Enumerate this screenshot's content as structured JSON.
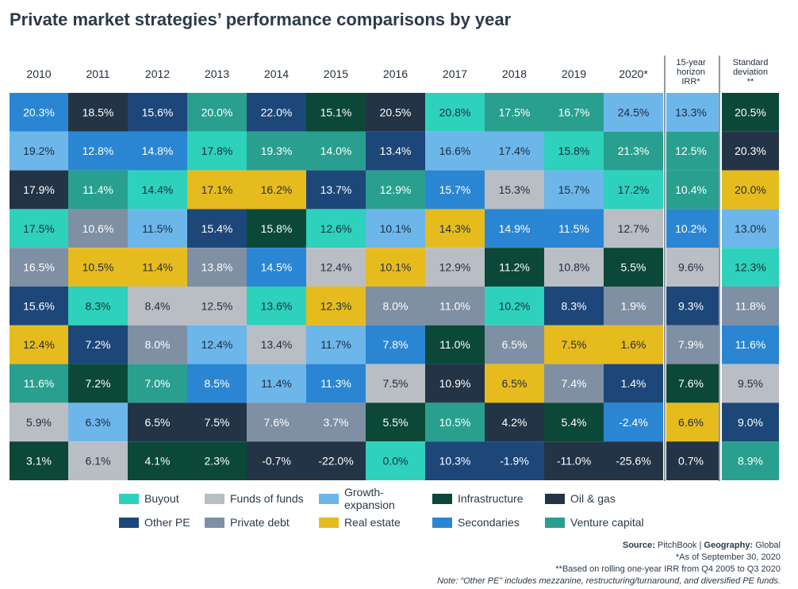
{
  "title": "Private market strategies’ performance comparisons by year",
  "colors": {
    "Buyout": "#2ed1bb",
    "Funds of funds": "#b9bec5",
    "Growth-expansion": "#6cb6ea",
    "Infrastructure": "#0c4838",
    "Oil & gas": "#243447",
    "Other PE": "#1d4779",
    "Private debt": "#7f8fa4",
    "Real estate": "#e6bb1d",
    "Secondaries": "#2a86d3",
    "Venture capital": "#299f8f"
  },
  "chart_data": {
    "type": "table",
    "title": "Private market strategies’ performance comparisons by year",
    "columns": [
      {
        "label": "2010",
        "cells": [
          [
            "20.3%",
            "Secondaries"
          ],
          [
            "19.2%",
            "Growth-expansion"
          ],
          [
            "17.9%",
            "Oil & gas"
          ],
          [
            "17.5%",
            "Buyout"
          ],
          [
            "16.5%",
            "Private debt"
          ],
          [
            "15.6%",
            "Other PE"
          ],
          [
            "12.4%",
            "Real estate"
          ],
          [
            "11.6%",
            "Venture capital"
          ],
          [
            "5.9%",
            "Funds of funds"
          ],
          [
            "3.1%",
            "Infrastructure"
          ]
        ]
      },
      {
        "label": "2011",
        "cells": [
          [
            "18.5%",
            "Oil & gas"
          ],
          [
            "12.8%",
            "Secondaries"
          ],
          [
            "11.4%",
            "Venture capital"
          ],
          [
            "10.6%",
            "Private debt"
          ],
          [
            "10.5%",
            "Real estate"
          ],
          [
            "8.3%",
            "Buyout"
          ],
          [
            "7.2%",
            "Other PE"
          ],
          [
            "7.2%",
            "Infrastructure"
          ],
          [
            "6.3%",
            "Growth-expansion"
          ],
          [
            "6.1%",
            "Funds of funds"
          ]
        ]
      },
      {
        "label": "2012",
        "cells": [
          [
            "15.6%",
            "Other PE"
          ],
          [
            "14.8%",
            "Secondaries"
          ],
          [
            "14.4%",
            "Buyout"
          ],
          [
            "11.5%",
            "Growth-expansion"
          ],
          [
            "11.4%",
            "Real estate"
          ],
          [
            "8.4%",
            "Funds of funds"
          ],
          [
            "8.0%",
            "Private debt"
          ],
          [
            "7.0%",
            "Venture capital"
          ],
          [
            "6.5%",
            "Oil & gas"
          ],
          [
            "4.1%",
            "Infrastructure"
          ]
        ]
      },
      {
        "label": "2013",
        "cells": [
          [
            "20.0%",
            "Venture capital"
          ],
          [
            "17.8%",
            "Buyout"
          ],
          [
            "17.1%",
            "Real estate"
          ],
          [
            "15.4%",
            "Other PE"
          ],
          [
            "13.8%",
            "Private debt"
          ],
          [
            "12.5%",
            "Funds of funds"
          ],
          [
            "12.4%",
            "Growth-expansion"
          ],
          [
            "8.5%",
            "Secondaries"
          ],
          [
            "7.5%",
            "Oil & gas"
          ],
          [
            "2.3%",
            "Infrastructure"
          ]
        ]
      },
      {
        "label": "2014",
        "cells": [
          [
            "22.0%",
            "Other PE"
          ],
          [
            "19.3%",
            "Venture capital"
          ],
          [
            "16.2%",
            "Real estate"
          ],
          [
            "15.8%",
            "Infrastructure"
          ],
          [
            "14.5%",
            "Secondaries"
          ],
          [
            "13.6%",
            "Buyout"
          ],
          [
            "13.4%",
            "Funds of funds"
          ],
          [
            "11.4%",
            "Growth-expansion"
          ],
          [
            "7.6%",
            "Private debt"
          ],
          [
            "-0.7%",
            "Oil & gas"
          ]
        ]
      },
      {
        "label": "2015",
        "cells": [
          [
            "15.1%",
            "Infrastructure"
          ],
          [
            "14.0%",
            "Venture capital"
          ],
          [
            "13.7%",
            "Other PE"
          ],
          [
            "12.6%",
            "Buyout"
          ],
          [
            "12.4%",
            "Funds of funds"
          ],
          [
            "12.3%",
            "Real estate"
          ],
          [
            "11.7%",
            "Growth-expansion"
          ],
          [
            "11.3%",
            "Secondaries"
          ],
          [
            "3.7%",
            "Private debt"
          ],
          [
            "-22.0%",
            "Oil & gas"
          ]
        ]
      },
      {
        "label": "2016",
        "cells": [
          [
            "20.5%",
            "Oil & gas"
          ],
          [
            "13.4%",
            "Other PE"
          ],
          [
            "12.9%",
            "Venture capital"
          ],
          [
            "10.1%",
            "Growth-expansion"
          ],
          [
            "10.1%",
            "Real estate"
          ],
          [
            "8.0%",
            "Private debt"
          ],
          [
            "7.8%",
            "Secondaries"
          ],
          [
            "7.5%",
            "Funds of funds"
          ],
          [
            "5.5%",
            "Infrastructure"
          ],
          [
            "0.0%",
            "Buyout"
          ]
        ]
      },
      {
        "label": "2017",
        "cells": [
          [
            "20.8%",
            "Buyout"
          ],
          [
            "16.6%",
            "Growth-expansion"
          ],
          [
            "15.7%",
            "Secondaries"
          ],
          [
            "14.3%",
            "Real estate"
          ],
          [
            "12.9%",
            "Funds of funds"
          ],
          [
            "11.0%",
            "Private debt"
          ],
          [
            "11.0%",
            "Infrastructure"
          ],
          [
            "10.9%",
            "Oil & gas"
          ],
          [
            "10.5%",
            "Venture capital"
          ],
          [
            "10.3%",
            "Other PE"
          ]
        ]
      },
      {
        "label": "2018",
        "cells": [
          [
            "17.5%",
            "Venture capital"
          ],
          [
            "17.4%",
            "Growth-expansion"
          ],
          [
            "15.3%",
            "Funds of funds"
          ],
          [
            "14.9%",
            "Secondaries"
          ],
          [
            "11.2%",
            "Infrastructure"
          ],
          [
            "10.2%",
            "Buyout"
          ],
          [
            "6.5%",
            "Private debt"
          ],
          [
            "6.5%",
            "Real estate"
          ],
          [
            "4.2%",
            "Oil & gas"
          ],
          [
            "-1.9%",
            "Other PE"
          ]
        ]
      },
      {
        "label": "2019",
        "cells": [
          [
            "16.7%",
            "Venture capital"
          ],
          [
            "15.8%",
            "Buyout"
          ],
          [
            "15.7%",
            "Growth-expansion"
          ],
          [
            "11.5%",
            "Secondaries"
          ],
          [
            "10.8%",
            "Funds of funds"
          ],
          [
            "8.3%",
            "Other PE"
          ],
          [
            "7.5%",
            "Real estate"
          ],
          [
            "7.4%",
            "Private debt"
          ],
          [
            "5.4%",
            "Infrastructure"
          ],
          [
            "-11.0%",
            "Oil & gas"
          ]
        ]
      },
      {
        "label": "2020*",
        "cells": [
          [
            "24.5%",
            "Growth-expansion"
          ],
          [
            "21.3%",
            "Venture capital"
          ],
          [
            "17.2%",
            "Buyout"
          ],
          [
            "12.7%",
            "Funds of funds"
          ],
          [
            "5.5%",
            "Infrastructure"
          ],
          [
            "1.9%",
            "Private debt"
          ],
          [
            "1.6%",
            "Real estate"
          ],
          [
            "1.4%",
            "Other PE"
          ],
          [
            "-2.4%",
            "Secondaries"
          ],
          [
            "-25.6%",
            "Oil & gas"
          ]
        ]
      },
      {
        "label": "15-year horizon IRR*",
        "cells": [
          [
            "13.3%",
            "Growth-expansion"
          ],
          [
            "12.5%",
            "Venture capital"
          ],
          [
            "10.4%",
            "Venture capital"
          ],
          [
            "10.2%",
            "Secondaries"
          ],
          [
            "9.6%",
            "Funds of funds"
          ],
          [
            "9.3%",
            "Other PE"
          ],
          [
            "7.9%",
            "Private debt"
          ],
          [
            "7.6%",
            "Infrastructure"
          ],
          [
            "6.6%",
            "Real estate"
          ],
          [
            "0.7%",
            "Oil & gas"
          ]
        ]
      },
      {
        "label": "Standard deviation **",
        "cells": [
          [
            "20.5%",
            "Infrastructure"
          ],
          [
            "20.3%",
            "Oil & gas"
          ],
          [
            "20.0%",
            "Real estate"
          ],
          [
            "13.0%",
            "Growth-expansion"
          ],
          [
            "12.3%",
            "Buyout"
          ],
          [
            "11.8%",
            "Private debt"
          ],
          [
            "11.6%",
            "Secondaries"
          ],
          [
            "9.5%",
            "Funds of funds"
          ],
          [
            "9.0%",
            "Other PE"
          ],
          [
            "8.9%",
            "Venture capital"
          ]
        ]
      }
    ]
  },
  "legend": [
    {
      "label": "Buyout",
      "key": "Buyout"
    },
    {
      "label": "Funds of funds",
      "key": "Funds of funds"
    },
    {
      "label": "Growth-expansion",
      "key": "Growth-expansion"
    },
    {
      "label": "Infrastructure",
      "key": "Infrastructure"
    },
    {
      "label": "Oil & gas",
      "key": "Oil & gas"
    },
    {
      "label": "Other PE",
      "key": "Other PE"
    },
    {
      "label": "Private debt",
      "key": "Private debt"
    },
    {
      "label": "Real estate",
      "key": "Real estate"
    },
    {
      "label": "Secondaries",
      "key": "Secondaries"
    },
    {
      "label": "Venture capital",
      "key": "Venture capital"
    }
  ],
  "notes": {
    "source_label": "Source:",
    "source_value": " PitchBook | ",
    "geography_label": "Geography:",
    "geography_value": " Global",
    "asof": "*As of September 30, 2020",
    "rolling": "**Based on rolling one-year IRR from Q4 2005 to Q3 2020",
    "note": "Note: “Other PE” includes mezzanine, restructuring/turnaround, and diversified PE funds."
  }
}
